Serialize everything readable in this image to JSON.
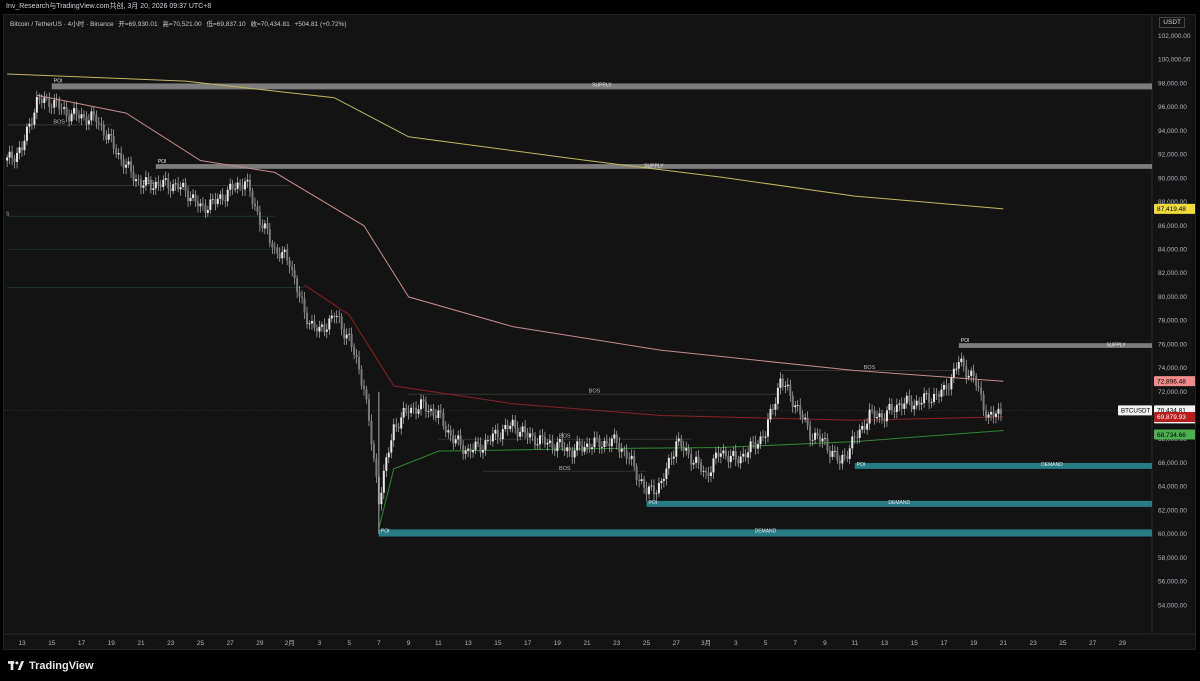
{
  "header": {
    "text": "Inv_Research与TradingView.com共创, 3月 20, 2026 09:37 UTC+8"
  },
  "legend": {
    "symbol": "Bitcoin / TetherUS · 4小时 · Binance",
    "open": "开=69,930.01",
    "high": "高=70,521.00",
    "low": "低=69,837.10",
    "close": "收=70,434.81",
    "change": "+504.81 (+0.72%)"
  },
  "price_axis": {
    "unit": "USDT",
    "ticks": [
      "102,000.00",
      "100,000.00",
      "98,000.00",
      "96,000.00",
      "94,000.00",
      "92,000.00",
      "90,000.00",
      "88,000.00",
      "86,000.00",
      "84,000.00",
      "82,000.00",
      "80,000.00",
      "78,000.00",
      "76,000.00",
      "74,000.00",
      "72,000.00",
      "70,000.00",
      "68,000.00",
      "66,000.00",
      "64,000.00",
      "62,000.00",
      "60,000.00",
      "58,000.00",
      "56,000.00",
      "54,000.00"
    ]
  },
  "price_labels": {
    "ma_yellow": "87,419.48",
    "ma_pink": "72,896.48",
    "current_symbol": "BTCUSDT",
    "current_price": "70,434.81",
    "countdown": "02:22:11",
    "ma_red": "69,879.93",
    "ma_green": "68,734.66"
  },
  "time_axis": {
    "ticks": [
      "13",
      "15",
      "17",
      "19",
      "21",
      "23",
      "25",
      "27",
      "29",
      "2月",
      "3",
      "5",
      "7",
      "9",
      "11",
      "13",
      "15",
      "17",
      "19",
      "21",
      "23",
      "25",
      "27",
      "3月",
      "3",
      "5",
      "7",
      "9",
      "11",
      "13",
      "15",
      "17",
      "19",
      "21",
      "23",
      "25",
      "27",
      "29"
    ]
  },
  "annotations": {
    "poi": "POI",
    "bos": "BOS",
    "supply": "SUPPLY",
    "demand": "DEMAND",
    "s": "S"
  },
  "brand": "TradingView",
  "colors": {
    "background": "#131313",
    "candle": "#cfcfcf",
    "supply_zone": "#8a8a8a",
    "demand_zone": "#2a8a94",
    "ma_yellow": "#c9b65a",
    "ma_pink": "#c98a8a",
    "ma_red": "#8b2020",
    "ma_green": "#2f8a2f",
    "label_yellow": "#f0dc3a",
    "label_pink": "#f28b8b",
    "label_red": "#b71c1c",
    "label_green": "#4caf50"
  },
  "chart_data": {
    "type": "candlestick",
    "timeframe": "4h",
    "ylim": [
      53000,
      103000
    ],
    "y_ticks": [
      102000,
      100000,
      98000,
      96000,
      94000,
      92000,
      90000,
      88000,
      86000,
      84000,
      82000,
      80000,
      78000,
      76000,
      74000,
      72000,
      70000,
      68000,
      66000,
      64000,
      62000,
      60000,
      58000,
      56000,
      54000
    ],
    "close_path": [
      {
        "date": "2026-01-12",
        "close": 91500
      },
      {
        "date": "2026-01-13",
        "close": 92500
      },
      {
        "date": "2026-01-14",
        "close": 96500
      },
      {
        "date": "2026-01-15",
        "close": 96500
      },
      {
        "date": "2026-01-16",
        "close": 95500
      },
      {
        "date": "2026-01-17",
        "close": 95200
      },
      {
        "date": "2026-01-18",
        "close": 95000
      },
      {
        "date": "2026-01-19",
        "close": 93000
      },
      {
        "date": "2026-01-20",
        "close": 91000
      },
      {
        "date": "2026-01-21",
        "close": 89500
      },
      {
        "date": "2026-01-22",
        "close": 89500
      },
      {
        "date": "2026-01-23",
        "close": 89500
      },
      {
        "date": "2026-01-24",
        "close": 89000
      },
      {
        "date": "2026-01-25",
        "close": 87500
      },
      {
        "date": "2026-01-26",
        "close": 88000
      },
      {
        "date": "2026-01-27",
        "close": 89000
      },
      {
        "date": "2026-01-28",
        "close": 89800
      },
      {
        "date": "2026-01-29",
        "close": 86500
      },
      {
        "date": "2026-01-30",
        "close": 84000
      },
      {
        "date": "2026-01-31",
        "close": 83000
      },
      {
        "date": "2026-02-01",
        "close": 78500
      },
      {
        "date": "2026-02-02",
        "close": 77000
      },
      {
        "date": "2026-02-03",
        "close": 78500
      },
      {
        "date": "2026-02-04",
        "close": 76500
      },
      {
        "date": "2026-02-05",
        "close": 72500
      },
      {
        "date": "2026-02-06",
        "close": 63000
      },
      {
        "date": "2026-02-07",
        "close": 69000
      },
      {
        "date": "2026-02-08",
        "close": 70500
      },
      {
        "date": "2026-02-09",
        "close": 70800
      },
      {
        "date": "2026-02-10",
        "close": 70000
      },
      {
        "date": "2026-02-11",
        "close": 68000
      },
      {
        "date": "2026-02-12",
        "close": 67000
      },
      {
        "date": "2026-02-13",
        "close": 67500
      },
      {
        "date": "2026-02-14",
        "close": 68500
      },
      {
        "date": "2026-02-15",
        "close": 69200
      },
      {
        "date": "2026-02-16",
        "close": 68300
      },
      {
        "date": "2026-02-17",
        "close": 67800
      },
      {
        "date": "2026-02-18",
        "close": 67500
      },
      {
        "date": "2026-02-19",
        "close": 67000
      },
      {
        "date": "2026-02-20",
        "close": 67500
      },
      {
        "date": "2026-02-21",
        "close": 67700
      },
      {
        "date": "2026-02-22",
        "close": 67800
      },
      {
        "date": "2026-02-23",
        "close": 66000
      },
      {
        "date": "2026-02-24",
        "close": 63500
      },
      {
        "date": "2026-02-25",
        "close": 64200
      },
      {
        "date": "2026-02-26",
        "close": 67800
      },
      {
        "date": "2026-02-27",
        "close": 66500
      },
      {
        "date": "2026-02-28",
        "close": 65000
      },
      {
        "date": "2026-03-01",
        "close": 67000
      },
      {
        "date": "2026-03-02",
        "close": 66200
      },
      {
        "date": "2026-03-03",
        "close": 67200
      },
      {
        "date": "2026-03-04",
        "close": 68500
      },
      {
        "date": "2026-03-05",
        "close": 73000
      },
      {
        "date": "2026-03-06",
        "close": 71000
      },
      {
        "date": "2026-03-07",
        "close": 68500
      },
      {
        "date": "2026-03-08",
        "close": 67700
      },
      {
        "date": "2026-03-09",
        "close": 66000
      },
      {
        "date": "2026-03-10",
        "close": 68000
      },
      {
        "date": "2026-03-11",
        "close": 70000
      },
      {
        "date": "2026-03-12",
        "close": 70000
      },
      {
        "date": "2026-03-13",
        "close": 71000
      },
      {
        "date": "2026-03-14",
        "close": 71000
      },
      {
        "date": "2026-03-15",
        "close": 71500
      },
      {
        "date": "2026-03-16",
        "close": 72000
      },
      {
        "date": "2026-03-17",
        "close": 74500
      },
      {
        "date": "2026-03-18",
        "close": 73200
      },
      {
        "date": "2026-03-19",
        "close": 69800
      },
      {
        "date": "2026-03-20",
        "close": 70434.81
      }
    ],
    "moving_averages": [
      {
        "name": "yellow",
        "color": "#c9b65a",
        "last": 87419.48,
        "points": [
          {
            "date": "2026-01-12",
            "value": 98800
          },
          {
            "date": "2026-01-24",
            "value": 98200
          },
          {
            "date": "2026-02-03",
            "value": 96800
          },
          {
            "date": "2026-02-08",
            "value": 93500
          },
          {
            "date": "2026-02-20",
            "value": 91500
          },
          {
            "date": "2026-03-01",
            "value": 90100
          },
          {
            "date": "2026-03-10",
            "value": 88500
          },
          {
            "date": "2026-03-20",
            "value": 87419.48
          }
        ]
      },
      {
        "name": "pink",
        "color": "#c98a8a",
        "last": 72896.48,
        "points": [
          {
            "date": "2026-01-14",
            "value": 97000
          },
          {
            "date": "2026-01-20",
            "value": 95500
          },
          {
            "date": "2026-01-25",
            "value": 91500
          },
          {
            "date": "2026-01-30",
            "value": 90500
          },
          {
            "date": "2026-02-05",
            "value": 86000
          },
          {
            "date": "2026-02-08",
            "value": 80000
          },
          {
            "date": "2026-02-15",
            "value": 77500
          },
          {
            "date": "2026-02-25",
            "value": 75500
          },
          {
            "date": "2026-03-10",
            "value": 73800
          },
          {
            "date": "2026-03-20",
            "value": 72896.48
          }
        ]
      },
      {
        "name": "red",
        "color": "#8b2020",
        "last": 69879.93,
        "points": [
          {
            "date": "2026-02-01",
            "value": 81000
          },
          {
            "date": "2026-02-04",
            "value": 78500
          },
          {
            "date": "2026-02-07",
            "value": 72500
          },
          {
            "date": "2026-02-15",
            "value": 71000
          },
          {
            "date": "2026-02-25",
            "value": 70000
          },
          {
            "date": "2026-03-10",
            "value": 69600
          },
          {
            "date": "2026-03-20",
            "value": 69879.93
          }
        ]
      },
      {
        "name": "green",
        "color": "#2f8a2f",
        "last": 68734.66,
        "points": [
          {
            "date": "2026-02-06",
            "value": 60500
          },
          {
            "date": "2026-02-07",
            "value": 65500
          },
          {
            "date": "2026-02-10",
            "value": 67000
          },
          {
            "date": "2026-02-20",
            "value": 67200
          },
          {
            "date": "2026-03-01",
            "value": 67300
          },
          {
            "date": "2026-03-10",
            "value": 67800
          },
          {
            "date": "2026-03-20",
            "value": 68734.66
          }
        ]
      }
    ],
    "zones": [
      {
        "label": "SUPPLY",
        "kind": "supply",
        "start": "2026-01-15",
        "price_low": 97500,
        "price_high": 98000
      },
      {
        "label": "SUPPLY",
        "kind": "supply",
        "start": "2026-01-22",
        "price_low": 90800,
        "price_high": 91200
      },
      {
        "label": "SUPPLY",
        "kind": "supply",
        "start": "2026-03-17",
        "price_low": 75700,
        "price_high": 76100
      },
      {
        "label": "DEMAND",
        "kind": "demand",
        "start": "2026-03-10",
        "price_low": 65500,
        "price_high": 66000
      },
      {
        "label": "DEMAND",
        "kind": "demand",
        "start": "2026-02-24",
        "price_low": 62300,
        "price_high": 62800
      },
      {
        "label": "DEMAND",
        "kind": "demand",
        "start": "2026-02-06",
        "price_low": 59800,
        "price_high": 60400
      }
    ],
    "horizontal_lines": [
      {
        "label": "BOS",
        "price": 94500,
        "start": "2026-01-12",
        "end": "2026-01-19"
      },
      {
        "label": "BOS",
        "price": 89400,
        "start": "2026-01-12",
        "end": "2026-01-31"
      },
      {
        "label": "",
        "price": 86800,
        "start": "2026-01-12",
        "end": "2026-01-30"
      },
      {
        "label": "",
        "price": 84000,
        "start": "2026-01-12",
        "end": "2026-01-31"
      },
      {
        "label": "",
        "price": 80800,
        "start": "2026-01-12",
        "end": "2026-02-01"
      },
      {
        "label": "BOS",
        "price": 71800,
        "start": "2026-02-08",
        "end": "2026-03-05"
      },
      {
        "label": "BOS",
        "price": 68000,
        "start": "2026-02-10",
        "end": "2026-02-27"
      },
      {
        "label": "BOS",
        "price": 65300,
        "start": "2026-02-13",
        "end": "2026-02-24"
      },
      {
        "label": "BOS",
        "price": 73800,
        "start": "2026-03-05",
        "end": "2026-03-17"
      }
    ],
    "current_price": 70434.81
  }
}
